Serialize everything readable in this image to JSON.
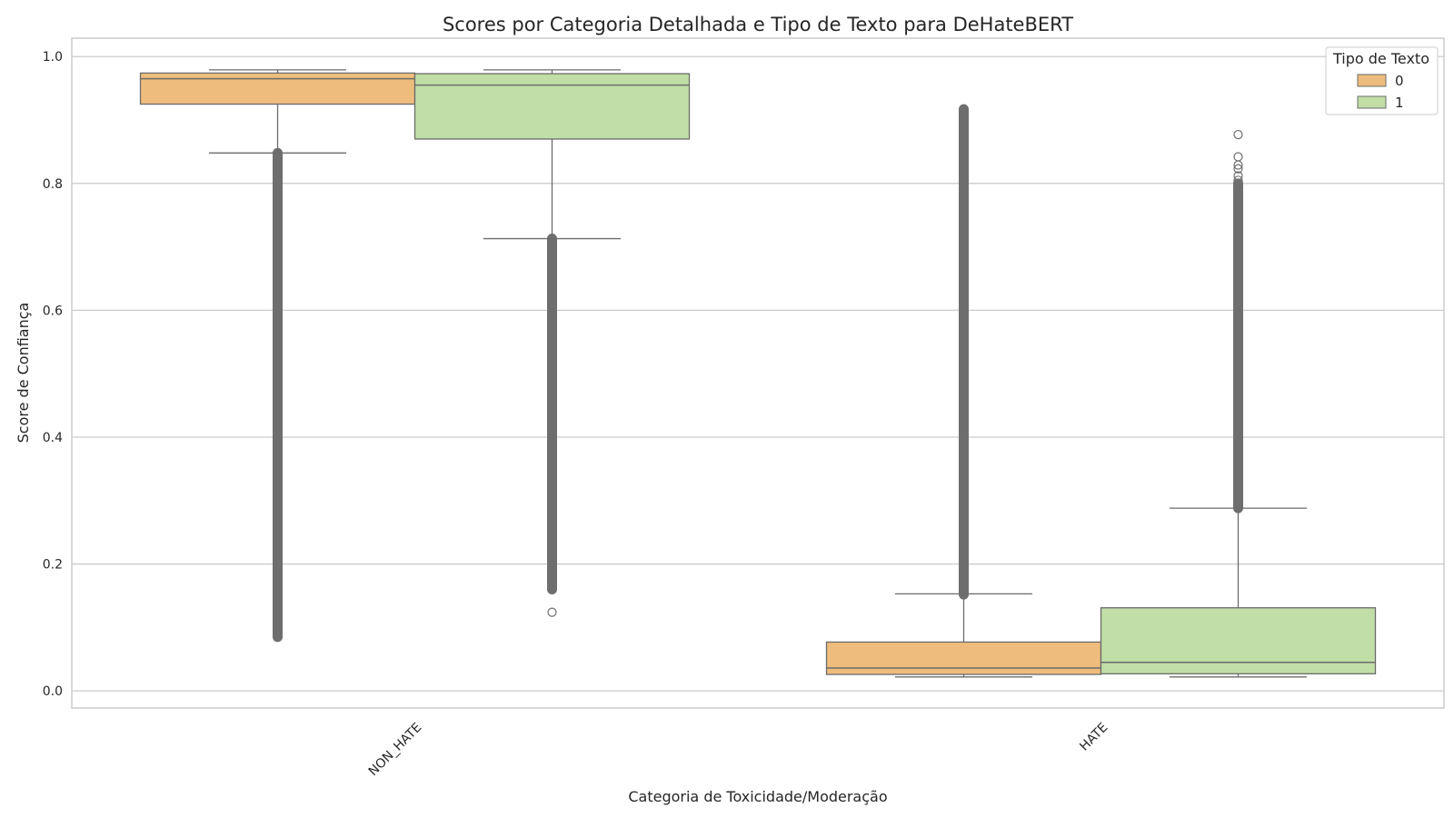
{
  "chart_data": {
    "type": "boxplot",
    "title": "Scores por Categoria Detalhada e Tipo de Texto para DeHateBERT",
    "xlabel": "Categoria de Toxicidade/Moderação",
    "ylabel": "Score de Confiança",
    "categories": [
      "NON_HATE",
      "HATE"
    ],
    "ylim": [
      -0.027,
      1.029
    ],
    "yticks": [
      0.0,
      0.2,
      0.4,
      0.6,
      0.8,
      1.0
    ],
    "ytick_labels": [
      "0.0",
      "0.2",
      "0.4",
      "0.6",
      "0.8",
      "1.0"
    ],
    "grid": true,
    "legend": {
      "title": "Tipo de Texto",
      "position": "top-right"
    },
    "series": [
      {
        "name": "0",
        "color": "#eebd7d",
        "boxes": [
          {
            "category": "NON_HATE",
            "whisker_low": 0.848,
            "q1": 0.925,
            "median": 0.965,
            "q3": 0.974,
            "whisker_high": 0.979,
            "outlier_range": [
              0.085,
              0.848
            ]
          },
          {
            "category": "HATE",
            "whisker_low": 0.022,
            "q1": 0.026,
            "median": 0.036,
            "q3": 0.077,
            "whisker_high": 0.153,
            "outlier_range": [
              0.152,
              0.917
            ]
          }
        ]
      },
      {
        "name": "1",
        "color": "#c0dea6",
        "boxes": [
          {
            "category": "NON_HATE",
            "whisker_low": 0.713,
            "q1": 0.87,
            "median": 0.955,
            "q3": 0.973,
            "whisker_high": 0.979,
            "outlier_range": [
              0.16,
              0.713
            ],
            "outlier_points": [
              0.124,
              0.163,
              0.172,
              0.185,
              0.197,
              0.205,
              0.215
            ]
          },
          {
            "category": "HATE",
            "whisker_low": 0.022,
            "q1": 0.027,
            "median": 0.045,
            "q3": 0.131,
            "whisker_high": 0.288,
            "outlier_range": [
              0.288,
              0.8
            ],
            "outlier_points": [
              0.805,
              0.812,
              0.823,
              0.829,
              0.842,
              0.877
            ]
          }
        ]
      }
    ]
  }
}
